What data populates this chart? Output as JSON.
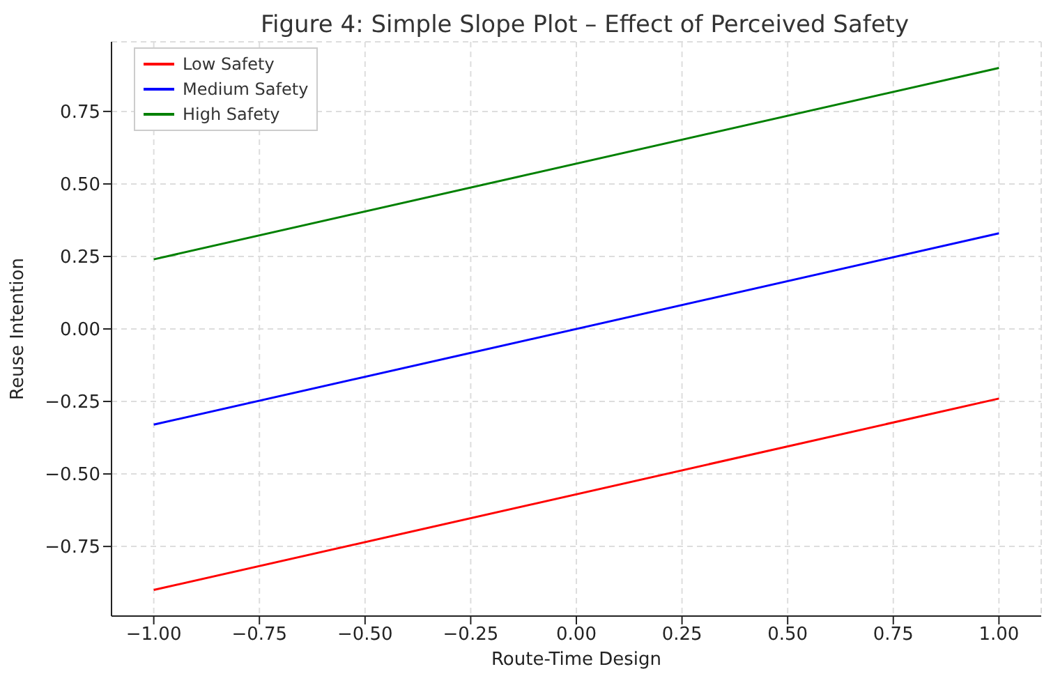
{
  "chart_data": {
    "type": "line",
    "title": "Figure 4: Simple Slope Plot – Effect of Perceived Safety",
    "xlabel": "Route-Time Design",
    "ylabel": "Reuse Intention",
    "x": [
      -1,
      1
    ],
    "series": [
      {
        "name": "Low Safety",
        "color": "#ff0000",
        "values": [
          -0.9,
          -0.24
        ]
      },
      {
        "name": "Medium Safety",
        "color": "#0000ff",
        "values": [
          -0.33,
          0.33
        ]
      },
      {
        "name": "High Safety",
        "color": "#008000",
        "values": [
          0.24,
          0.9
        ]
      }
    ],
    "xlim": [
      -1.1,
      1.1
    ],
    "xticks": [
      {
        "value": -1,
        "label": "−1.00"
      },
      {
        "value": -0.75,
        "label": "−0.75"
      },
      {
        "value": -0.5,
        "label": "−0.50"
      },
      {
        "value": -0.25,
        "label": "−0.25"
      },
      {
        "value": 0,
        "label": "0.00"
      },
      {
        "value": 0.25,
        "label": "0.25"
      },
      {
        "value": 0.5,
        "label": "0.50"
      },
      {
        "value": 0.75,
        "label": "0.75"
      },
      {
        "value": 1,
        "label": "1.00"
      }
    ],
    "ylim": [
      -0.99,
      0.99
    ],
    "yticks": [
      {
        "value": -0.75,
        "label": "−0.75"
      },
      {
        "value": -0.5,
        "label": "−0.50"
      },
      {
        "value": -0.25,
        "label": "−0.25"
      },
      {
        "value": 0,
        "label": "0.00"
      },
      {
        "value": 0.25,
        "label": "0.25"
      },
      {
        "value": 0.5,
        "label": "0.50"
      },
      {
        "value": 0.75,
        "label": "0.75"
      }
    ],
    "grid": true,
    "legend": "top left",
    "marker": "none",
    "line_style": "solid"
  }
}
